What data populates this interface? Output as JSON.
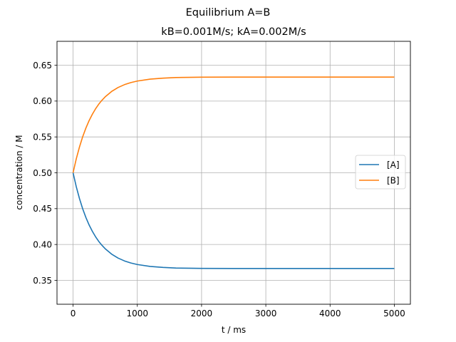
{
  "chart_data": {
    "type": "line",
    "suptitle": "Equilibrium A=B",
    "title": "kB=0.001M/s; kA=0.002M/s",
    "xlabel": "t / ms",
    "ylabel": "concentration / M",
    "xlim": [
      -250,
      5250
    ],
    "ylim": [
      0.3167,
      0.6833
    ],
    "xticks": [
      0,
      1000,
      2000,
      3000,
      4000,
      5000
    ],
    "yticks": [
      0.35,
      0.4,
      0.45,
      0.5,
      0.55,
      0.6,
      0.65
    ],
    "ytick_labels": [
      "0.35",
      "0.40",
      "0.45",
      "0.50",
      "0.55",
      "0.60",
      "0.65"
    ],
    "grid": true,
    "legend_position": "center-right",
    "x": [
      0,
      50,
      100,
      150,
      200,
      250,
      300,
      350,
      400,
      450,
      500,
      600,
      700,
      800,
      900,
      1000,
      1200,
      1400,
      1600,
      1800,
      2000,
      2500,
      3000,
      3500,
      4000,
      4500,
      5000
    ],
    "series": [
      {
        "name": "[A]",
        "color": "#1f77b4",
        "values": [
          0.5,
          0.4806,
          0.464,
          0.4497,
          0.4376,
          0.4272,
          0.4184,
          0.4108,
          0.4043,
          0.3988,
          0.3941,
          0.3866,
          0.3811,
          0.3771,
          0.3742,
          0.3721,
          0.3694,
          0.368,
          0.3672,
          0.3669,
          0.3667,
          0.3666,
          0.3666,
          0.3666,
          0.3666,
          0.3666,
          0.3666
        ]
      },
      {
        "name": "[B]",
        "color": "#ff7f0e",
        "values": [
          0.5,
          0.5194,
          0.536,
          0.5503,
          0.5624,
          0.5728,
          0.5816,
          0.5892,
          0.5957,
          0.6012,
          0.6059,
          0.6134,
          0.6189,
          0.6229,
          0.6258,
          0.6279,
          0.6306,
          0.632,
          0.6328,
          0.6331,
          0.6333,
          0.6334,
          0.6334,
          0.6334,
          0.6334,
          0.6334,
          0.6334
        ]
      }
    ]
  }
}
